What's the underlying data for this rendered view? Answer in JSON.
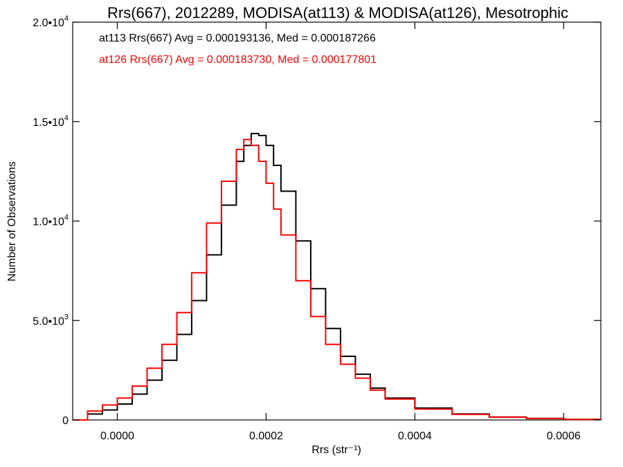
{
  "chart_data": {
    "type": "line",
    "title": "Rrs(667), 2012289, MODISA(at113) & MODISA(at126), Mesotrophic",
    "xlabel": "Rrs (str⁻¹)",
    "ylabel": "Number of Observations",
    "xlim": [
      -6e-05,
      0.00065
    ],
    "ylim": [
      0,
      20000
    ],
    "x_ticks": [
      {
        "value": 0.0,
        "label": "0.0000"
      },
      {
        "value": 0.0002,
        "label": "0.0002"
      },
      {
        "value": 0.0004,
        "label": "0.0004"
      },
      {
        "value": 0.0006,
        "label": "0.0006"
      }
    ],
    "y_ticks": [
      {
        "value": 0,
        "mant": "0",
        "exp": ""
      },
      {
        "value": 5000,
        "mant": "5.0•10",
        "exp": "3"
      },
      {
        "value": 10000,
        "mant": "1.0•10",
        "exp": "4"
      },
      {
        "value": 15000,
        "mant": "1.5•10",
        "exp": "4"
      },
      {
        "value": 20000,
        "mant": "2.0•10",
        "exp": "4"
      }
    ],
    "grid": false,
    "legend_position": "top-left",
    "series": [
      {
        "name": "at113",
        "color": "#000000",
        "label": "at113 Rrs(667) Avg = 0.000193136, Med = 0.000187266",
        "x": [
          -6e-05,
          -4e-05,
          -2e-05,
          0.0,
          2e-05,
          4e-05,
          6e-05,
          8e-05,
          0.0001,
          0.00012,
          0.00014,
          0.00016,
          0.00017,
          0.00018,
          0.00019,
          0.0002,
          0.00021,
          0.00022,
          0.00024,
          0.00026,
          0.00028,
          0.0003,
          0.00032,
          0.00034,
          0.00036,
          0.0004,
          0.00045,
          0.0005,
          0.00055,
          0.0006,
          0.00065
        ],
        "y": [
          0,
          300,
          500,
          800,
          1300,
          2000,
          3000,
          4300,
          6000,
          8300,
          10800,
          13000,
          13800,
          14400,
          14300,
          13800,
          12800,
          11500,
          9000,
          6600,
          4600,
          3200,
          2300,
          1600,
          1100,
          600,
          300,
          150,
          80,
          30,
          0
        ]
      },
      {
        "name": "at126",
        "color": "#ff0000",
        "label": "at126 Rrs(667) Avg = 0.000183730, Med = 0.000177801",
        "x": [
          -6e-05,
          -4e-05,
          -2e-05,
          0.0,
          2e-05,
          4e-05,
          6e-05,
          8e-05,
          0.0001,
          0.00012,
          0.00014,
          0.00016,
          0.00017,
          0.00018,
          0.00019,
          0.0002,
          0.00021,
          0.00022,
          0.00024,
          0.00026,
          0.00028,
          0.0003,
          0.00032,
          0.00034,
          0.00036,
          0.0004,
          0.00045,
          0.0005,
          0.00055,
          0.0006,
          0.00065
        ],
        "y": [
          0,
          450,
          750,
          1100,
          1700,
          2600,
          3800,
          5400,
          7400,
          9900,
          12000,
          13600,
          14100,
          13800,
          13000,
          11900,
          10600,
          9300,
          7000,
          5200,
          3800,
          2800,
          2100,
          1500,
          1050,
          550,
          280,
          140,
          70,
          25,
          0
        ]
      }
    ]
  }
}
